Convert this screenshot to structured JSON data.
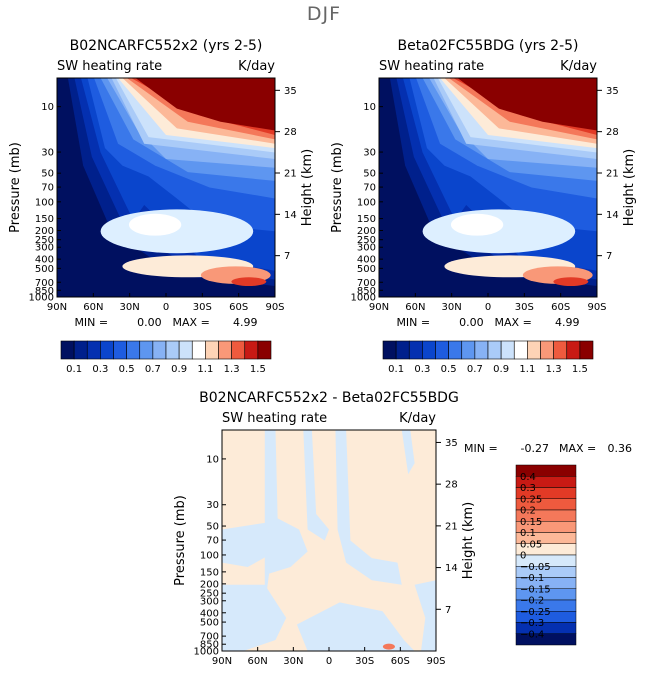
{
  "figure": {
    "suptitle": "DJF"
  },
  "colors": {
    "positive_ramp": [
      "#FDEBD8",
      "#FDD3B6",
      "#FCB898",
      "#F99878",
      "#F4785A",
      "#EE5A3E",
      "#E23A26",
      "#C81A14",
      "#A60808",
      "#8A0000"
    ],
    "blue_ramp": [
      "#001060",
      "#00208C",
      "#0430B0",
      "#0A45CC",
      "#1E5CE0",
      "#3A78EA",
      "#5E96F0",
      "#87B2F5",
      "#AACBF8",
      "#CCE2FB",
      "#DDEFFF"
    ]
  },
  "chart_data": [
    {
      "type": "heatmap",
      "title": "B02NCARFC552x2 (yrs 2-5)",
      "left_label": "SW heating rate",
      "right_label": "K/day",
      "xlabel": "",
      "ylabel": "Pressure (mb)",
      "y2label": "Height (km)",
      "x_ticks": [
        "90N",
        "60N",
        "30N",
        "0",
        "30S",
        "60S",
        "90S"
      ],
      "y_ticks": [
        "10",
        "30",
        "50",
        "70",
        "100",
        "150",
        "200",
        "250",
        "300",
        "400",
        "500",
        "700",
        "850",
        "1000"
      ],
      "y2_ticks": [
        "35",
        "28",
        "21",
        "14",
        "7"
      ],
      "min_label": "MIN =",
      "min_value": "0.00",
      "max_label": "MAX =",
      "max_value": "4.99",
      "colorbar_levels": [
        0.1,
        0.2,
        0.3,
        0.4,
        0.5,
        0.6,
        0.7,
        0.8,
        0.9,
        1.0,
        1.1,
        1.2,
        1.3,
        1.4,
        1.5
      ],
      "colorbar_labels": [
        "0.1",
        "0.3",
        "0.5",
        "0.7",
        "0.9",
        "1.1",
        "1.3",
        "1.5"
      ],
      "colorbar_orientation": "horizontal"
    },
    {
      "type": "heatmap",
      "title": "Beta02FC55BDG (yrs 2-5)",
      "left_label": "SW heating rate",
      "right_label": "K/day",
      "xlabel": "",
      "ylabel": "Pressure (mb)",
      "y2label": "Height (km)",
      "x_ticks": [
        "90N",
        "60N",
        "30N",
        "0",
        "30S",
        "60S",
        "90S"
      ],
      "y_ticks": [
        "10",
        "30",
        "50",
        "70",
        "100",
        "150",
        "200",
        "250",
        "300",
        "400",
        "500",
        "700",
        "850",
        "1000"
      ],
      "y2_ticks": [
        "35",
        "28",
        "21",
        "14",
        "7"
      ],
      "min_label": "MIN =",
      "min_value": "0.00",
      "max_label": "MAX =",
      "max_value": "4.99",
      "colorbar_levels": [
        0.1,
        0.2,
        0.3,
        0.4,
        0.5,
        0.6,
        0.7,
        0.8,
        0.9,
        1.0,
        1.1,
        1.2,
        1.3,
        1.4,
        1.5
      ],
      "colorbar_labels": [
        "0.1",
        "0.3",
        "0.5",
        "0.7",
        "0.9",
        "1.1",
        "1.3",
        "1.5"
      ],
      "colorbar_orientation": "horizontal"
    },
    {
      "type": "heatmap",
      "title": "B02NCARFC552x2 - Beta02FC55BDG",
      "left_label": "SW heating rate",
      "right_label": "K/day",
      "xlabel": "",
      "ylabel": "Pressure (mb)",
      "y2label": "Height (km)",
      "x_ticks": [
        "90N",
        "60N",
        "30N",
        "0",
        "30S",
        "60S",
        "90S"
      ],
      "y_ticks": [
        "10",
        "30",
        "50",
        "70",
        "100",
        "150",
        "200",
        "250",
        "300",
        "400",
        "500",
        "700",
        "850",
        "1000"
      ],
      "y2_ticks": [
        "35",
        "28",
        "21",
        "14",
        "7"
      ],
      "min_label": "MIN =",
      "min_value": "-0.27",
      "max_label": "MAX =",
      "max_value": "0.36",
      "colorbar_levels": [
        -0.4,
        -0.3,
        -0.25,
        -0.2,
        -0.15,
        -0.1,
        -0.05,
        0,
        0.05,
        0.1,
        0.15,
        0.2,
        0.25,
        0.3,
        0.4
      ],
      "colorbar_labels": [
        "0.4",
        "0.3",
        "0.25",
        "0.2",
        "0.15",
        "0.1",
        "0.05",
        "0",
        "−0.05",
        "−0.1",
        "−0.15",
        "−0.2",
        "−0.25",
        "−0.3",
        "−0.4"
      ],
      "colorbar_orientation": "vertical"
    }
  ]
}
